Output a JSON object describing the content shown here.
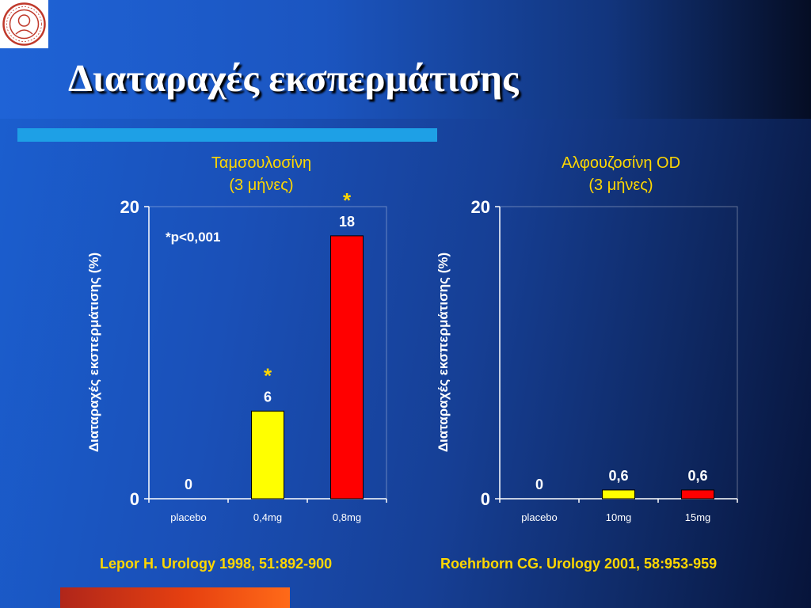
{
  "slide": {
    "title": "Διαταραχές εκσπερμάτισης"
  },
  "colors": {
    "title_text": "#ffffff",
    "chart_title": "#ffd700",
    "bar_placebo": "#ffff00",
    "bar_low": "#ffff00",
    "bar_high": "#ff0000",
    "axis": "#ffffff",
    "reference": "#ffd700"
  },
  "chart_data": [
    {
      "type": "bar",
      "title_line1": "Ταμσουλοσίνη",
      "title_line2": "(3 μήνες)",
      "ylabel": "Διαταραχές εκσπερμάτισης (%)",
      "categories": [
        "placebo",
        "0,4mg",
        "0,8mg"
      ],
      "values": [
        0,
        6,
        18
      ],
      "value_labels": [
        "0",
        "6",
        "18"
      ],
      "significance": [
        "",
        "*",
        "*"
      ],
      "bar_colors": [
        "#ffff00",
        "#ffff00",
        "#ff0000"
      ],
      "ylim": [
        0,
        20
      ],
      "yticks": [
        "0",
        "20"
      ],
      "note": "*p<0,001",
      "reference": "Lepor H. Urology 1998, 51:892-900"
    },
    {
      "type": "bar",
      "title_line1": "Αλφουζοσίνη OD",
      "title_line2": "(3 μήνες)",
      "ylabel": "Διαταραχές εκσπερμάτισης (%)",
      "categories": [
        "placebo",
        "10mg",
        "15mg"
      ],
      "values": [
        0,
        0.6,
        0.6
      ],
      "value_labels": [
        "0",
        "0,6",
        "0,6"
      ],
      "significance": [
        "",
        "",
        ""
      ],
      "bar_colors": [
        "#ffff00",
        "#ffff00",
        "#ff0000"
      ],
      "ylim": [
        0,
        20
      ],
      "yticks": [
        "0",
        "20"
      ],
      "note": "",
      "reference": "Roehrborn CG. Urology 2001, 58:953-959"
    }
  ]
}
